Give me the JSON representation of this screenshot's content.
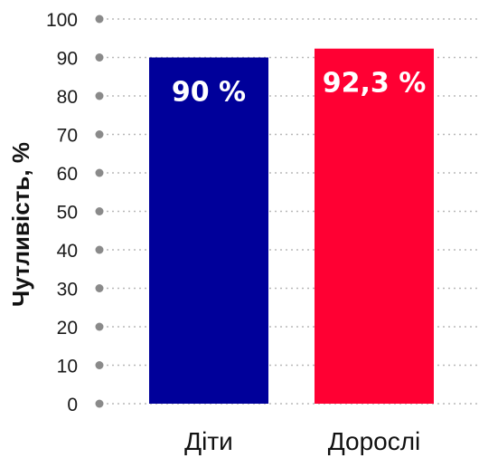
{
  "chart_data": {
    "type": "bar",
    "categories": [
      "Діти",
      "Дорослі"
    ],
    "values": [
      90,
      92.3
    ],
    "data_labels": [
      "90 %",
      "92,3 %"
    ],
    "colors": [
      "#00009a",
      "#ff0033"
    ],
    "title": "",
    "xlabel": "",
    "ylabel": "Чутливість, %",
    "ylim": [
      0,
      100
    ],
    "yticks": [
      0,
      10,
      20,
      30,
      40,
      50,
      60,
      70,
      80,
      90,
      100
    ],
    "grid": true,
    "legend": "none"
  }
}
